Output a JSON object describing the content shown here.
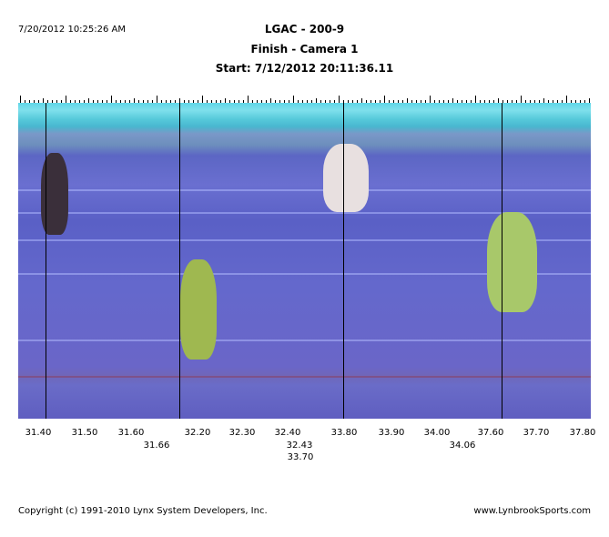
{
  "print_timestamp": "7/20/2012 10:25:26 AM",
  "header": {
    "title": "LGAC - 200-9",
    "subtitle": "Finish - Camera 1",
    "start": "Start: 7/12/2012 20:11:36.11"
  },
  "time_labels": {
    "row1": [
      "31.40",
      "31.50",
      "31.60",
      "32.20",
      "32.30",
      "32.40",
      "33.80",
      "33.90",
      "34.00",
      "37.60",
      "37.70",
      "37.80"
    ],
    "row2": [
      "31.66",
      "32.43",
      "34.06"
    ],
    "row3": [
      "33.70"
    ]
  },
  "finish_times": [
    "31.66",
    "32.43",
    "33.70",
    "34.06"
  ],
  "footer": {
    "copyright": "Copyright (c) 1991-2010 Lynx System Developers, Inc.",
    "website": "www.LynbrookSports.com"
  }
}
